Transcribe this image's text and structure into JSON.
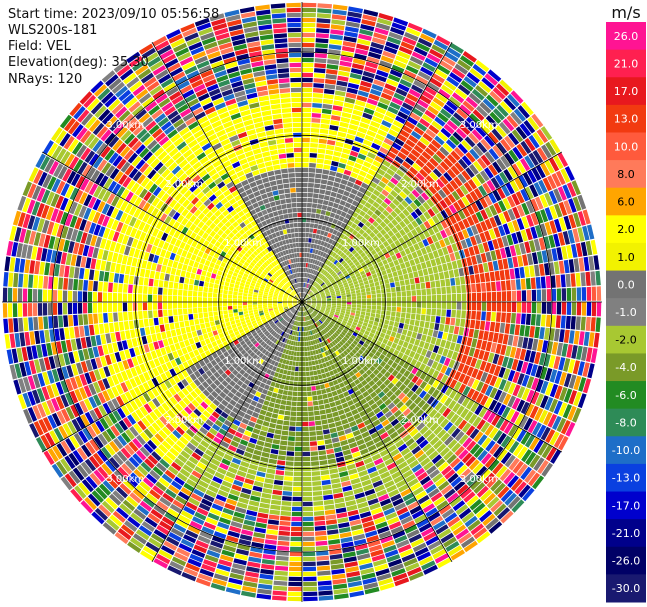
{
  "header": {
    "start_time": "Start time: 2023/09/10 05:56:58",
    "instrument": "WLS200s-181",
    "field": "Field: VEL",
    "elevation": "Elevation(deg): 35.30",
    "nrays": "NRays: 120"
  },
  "chart_data": {
    "type": "heatmap",
    "subtype": "ppi-polar",
    "field": "VEL",
    "nrays": 120,
    "elevation_deg": 35.3,
    "range_rings_km": [
      1.0,
      2.0,
      3.0
    ],
    "ring_labels": [
      "1.00km",
      "2.00km",
      "3.00km"
    ],
    "max_range_km": 3.6,
    "spoke_angles_deg": [
      0,
      30,
      60,
      90,
      120,
      150,
      180,
      210,
      240,
      270,
      300,
      330
    ],
    "colorbar": {
      "unit": "m/s",
      "tick_labels": [
        "26.0",
        "21.0",
        "17.0",
        "13.0",
        "10.0",
        "8.0",
        "6.0",
        "2.0",
        "1.0",
        "0.0",
        "-1.0",
        "-2.0",
        "-4.0",
        "-6.0",
        "-8.0",
        "-10.0",
        "-13.0",
        "-17.0",
        "-21.0",
        "-26.0",
        "-30.0"
      ],
      "colors": [
        "#ff1493",
        "#ff2050",
        "#e8181e",
        "#f23a10",
        "#ff5a3c",
        "#ff7a5a",
        "#ffa500",
        "#ffff00",
        "#f2f200",
        "#737373",
        "#808080",
        "#a8c832",
        "#7a9a28",
        "#228b22",
        "#2e8b57",
        "#1e6ec8",
        "#0a40e0",
        "#0000cd",
        "#00008b",
        "#000066",
        "#191970"
      ]
    },
    "velocity_regions": [
      {
        "az_from": 240,
        "az_to": 330,
        "range_from_km": 0.0,
        "range_to_km": 1.6,
        "value": 2.0
      },
      {
        "az_from": 330,
        "az_to": 30,
        "range_from_km": 0.0,
        "range_to_km": 1.6,
        "value": 0.0
      },
      {
        "az_from": 30,
        "az_to": 120,
        "range_from_km": 0.0,
        "range_to_km": 2.0,
        "value": -2.0
      },
      {
        "az_from": 120,
        "az_to": 200,
        "range_from_km": 0.0,
        "range_to_km": 2.0,
        "value": -4.0
      },
      {
        "az_from": 200,
        "az_to": 240,
        "range_from_km": 0.0,
        "range_to_km": 1.6,
        "value": 0.0
      },
      {
        "az_from": 270,
        "az_to": 30,
        "range_from_km": 1.6,
        "range_to_km": 2.5,
        "value": 2.0
      },
      {
        "az_from": 30,
        "az_to": 120,
        "range_from_km": 2.0,
        "range_to_km": 2.5,
        "value": 13.0
      },
      {
        "az_from": 120,
        "az_to": 220,
        "range_from_km": 2.0,
        "range_to_km": 2.6,
        "value": -2.0
      },
      {
        "az_from": 220,
        "az_to": 270,
        "range_from_km": 1.6,
        "range_to_km": 2.5,
        "value": 2.0
      }
    ]
  }
}
